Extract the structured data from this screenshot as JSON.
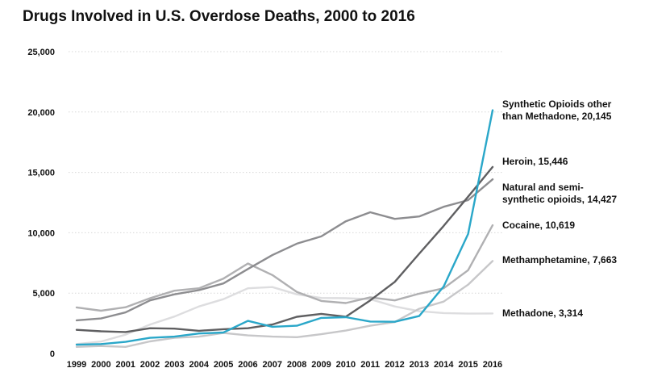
{
  "chart_data": {
    "type": "line",
    "title": "Drugs Involved in U.S. Overdose Deaths, 2000 to 2016",
    "xlabel": "",
    "ylabel": "",
    "ylim": [
      0,
      25000
    ],
    "y_ticks": [
      0,
      5000,
      10000,
      15000,
      20000,
      25000
    ],
    "y_tick_labels": [
      "0",
      "5,000",
      "10,000",
      "15,000",
      "20,000",
      "25,000"
    ],
    "grid": true,
    "legend": "end-of-line labels",
    "x": [
      "1999",
      "2000",
      "2001",
      "2002",
      "2003",
      "2004",
      "2005",
      "2006",
      "2007",
      "2008",
      "2009",
      "2010",
      "2011",
      "2012",
      "2013",
      "2014",
      "2015",
      "2016"
    ],
    "series": [
      {
        "name": "Synthetic Opioids other than Methadone, 20,145",
        "color": "#2aa7c9",
        "values": [
          730,
          780,
          960,
          1300,
          1400,
          1660,
          1740,
          2700,
          2210,
          2300,
          2950,
          3010,
          2650,
          2630,
          3100,
          5550,
          9900,
          20145
        ]
      },
      {
        "name": "Heroin, 15,446",
        "color": "#5f5f61",
        "values": [
          1960,
          1840,
          1780,
          2090,
          2060,
          1880,
          2010,
          2090,
          2400,
          3040,
          3280,
          3040,
          4400,
          5930,
          8260,
          10570,
          12990,
          15446
        ]
      },
      {
        "name": "Natural and semi-synthetic opioids, 14,427",
        "color": "#8d8d90",
        "values": [
          2750,
          2900,
          3400,
          4400,
          4900,
          5250,
          5800,
          7000,
          8150,
          9100,
          9700,
          10950,
          11700,
          11150,
          11350,
          12150,
          12700,
          14427
        ]
      },
      {
        "name": "Cocaine, 10,619",
        "color": "#b0b0b2",
        "values": [
          3820,
          3540,
          3830,
          4580,
          5200,
          5400,
          6200,
          7450,
          6500,
          5100,
          4350,
          4180,
          4650,
          4400,
          4950,
          5400,
          6900,
          10619
        ]
      },
      {
        "name": "Methamphetamine, 7,663",
        "color": "#c7c7c9",
        "values": [
          550,
          620,
          550,
          1000,
          1300,
          1400,
          1700,
          1500,
          1400,
          1350,
          1600,
          1900,
          2300,
          2600,
          3700,
          4300,
          5700,
          7663
        ]
      },
      {
        "name": "Methadone, 3,314",
        "color": "#dddddf",
        "values": [
          780,
          990,
          1560,
          2400,
          3060,
          3900,
          4500,
          5400,
          5500,
          4900,
          4600,
          4580,
          4500,
          3900,
          3500,
          3350,
          3300,
          3314
        ]
      }
    ]
  }
}
